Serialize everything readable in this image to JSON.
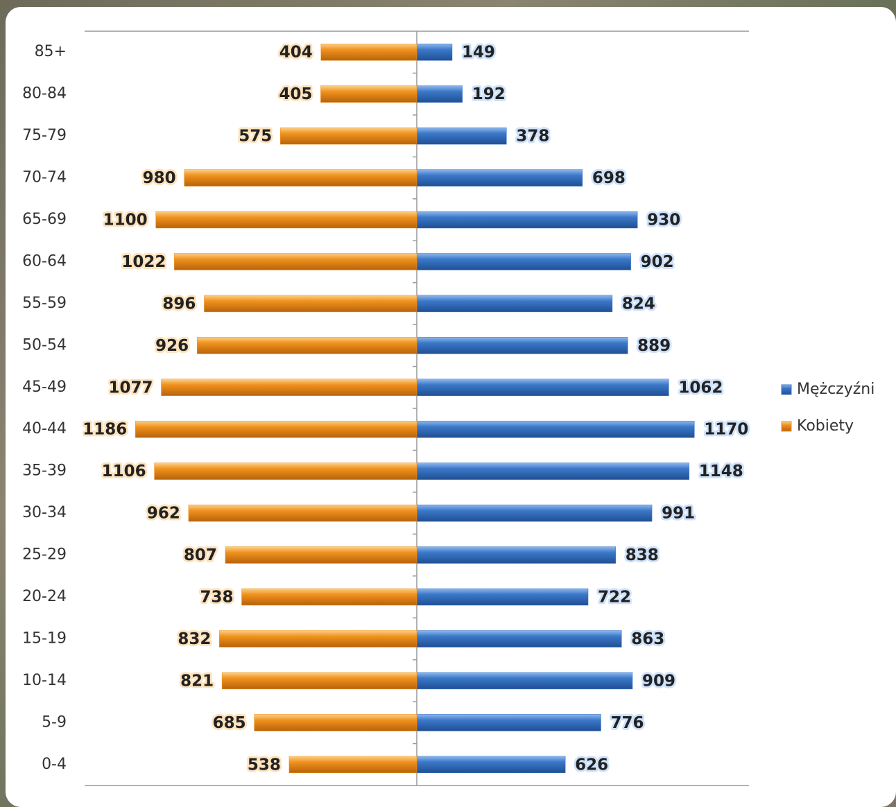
{
  "chart_data": {
    "type": "pyramid",
    "categories": [
      "85+",
      "80-84",
      "75-79",
      "70-74",
      "65-69",
      "60-64",
      "55-59",
      "50-54",
      "45-49",
      "40-44",
      "35-39",
      "30-34",
      "25-29",
      "20-24",
      "15-19",
      "10-14",
      "5-9",
      "0-4"
    ],
    "series": [
      {
        "name": "Mężczyźni",
        "color": "#3b78c8",
        "values": [
          149,
          192,
          378,
          698,
          930,
          902,
          824,
          889,
          1062,
          1170,
          1148,
          991,
          838,
          722,
          863,
          909,
          776,
          626
        ]
      },
      {
        "name": "Kobiety",
        "color": "#f0921e",
        "values": [
          404,
          405,
          575,
          980,
          1100,
          1022,
          896,
          926,
          1077,
          1186,
          1106,
          962,
          807,
          738,
          832,
          821,
          685,
          538
        ]
      }
    ],
    "xlim": [
      -1400,
      1400
    ]
  }
}
